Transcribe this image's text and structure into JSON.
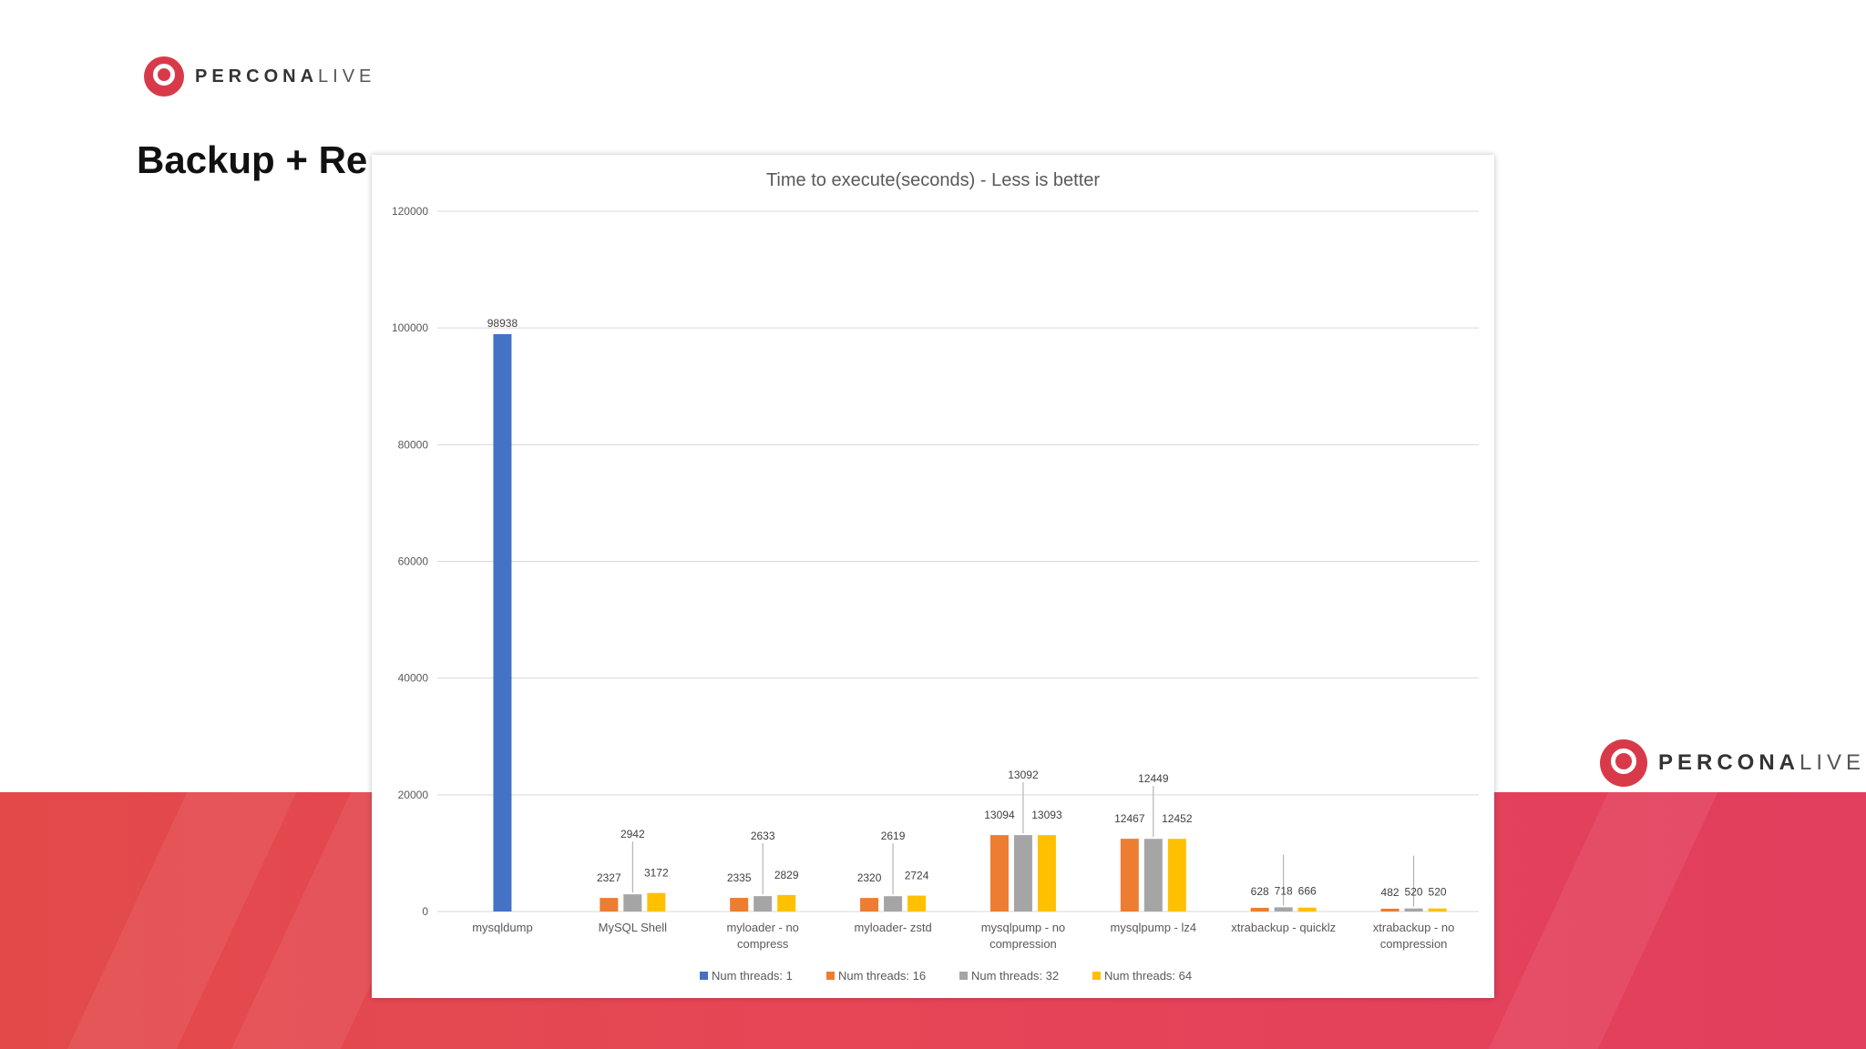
{
  "slide": {
    "title": "Backup + Re",
    "logo_top": {
      "strong": "PERCONA",
      "light": "LIVE"
    },
    "logo_right": {
      "strong": "PERCONA",
      "light": "LIVE"
    }
  },
  "colors": {
    "band": "#e4455a",
    "brand": "#d93a4a"
  },
  "chart_data": {
    "type": "bar",
    "title": "Time to execute(seconds)  - Less is better",
    "xlabel": "",
    "ylabel": "",
    "ylim": [
      0,
      120000
    ],
    "yticks": [
      0,
      20000,
      40000,
      60000,
      80000,
      100000,
      120000
    ],
    "ytick_labels": [
      "0",
      "20000",
      "40000",
      "60000",
      "80000",
      "100000",
      "120000"
    ],
    "grid": true,
    "legend_position": "bottom",
    "categories": [
      [
        "mysqldump"
      ],
      [
        "MySQL Shell"
      ],
      [
        "myloader - no",
        "compress"
      ],
      [
        "myloader- zstd"
      ],
      [
        "mysqlpump - no",
        "compression"
      ],
      [
        "mysqlpump - lz4"
      ],
      [
        "xtrabackup - quicklz"
      ],
      [
        "xtrabackup - no",
        "compression"
      ]
    ],
    "series": [
      {
        "name": "Num threads: 1",
        "color": "#4472c4",
        "values": [
          98938,
          null,
          null,
          null,
          null,
          null,
          null,
          null
        ]
      },
      {
        "name": "Num threads: 16",
        "color": "#ed7d31",
        "values": [
          null,
          2327,
          2335,
          2320,
          13094,
          12467,
          628,
          482
        ]
      },
      {
        "name": "Num threads: 32",
        "color": "#a5a5a5",
        "values": [
          null,
          2942,
          2633,
          2619,
          13092,
          12449,
          718,
          520
        ]
      },
      {
        "name": "Num threads: 64",
        "color": "#ffc000",
        "values": [
          null,
          3172,
          2829,
          2724,
          13093,
          12452,
          666,
          520
        ]
      }
    ]
  }
}
